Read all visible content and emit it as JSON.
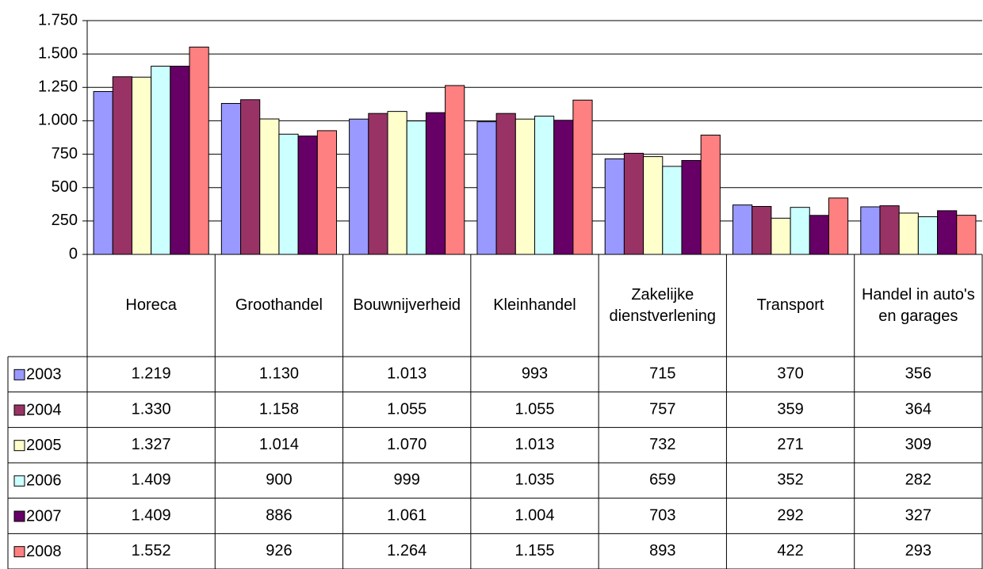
{
  "chart_data": {
    "type": "bar",
    "categories": [
      "Horeca",
      "Groothandel",
      "Bouwnijverheid",
      "Kleinhandel",
      "Zakelijke dienstverlening",
      "Transport",
      "Handel in auto's en garages"
    ],
    "series": [
      {
        "name": "2003",
        "color": "#9999ff",
        "values": [
          1219,
          1130,
          1013,
          993,
          715,
          370,
          356
        ],
        "value_labels": [
          "1.219",
          "1.130",
          "1.013",
          "993",
          "715",
          "370",
          "356"
        ]
      },
      {
        "name": "2004",
        "color": "#993366",
        "values": [
          1330,
          1158,
          1055,
          1055,
          757,
          359,
          364
        ],
        "value_labels": [
          "1.330",
          "1.158",
          "1.055",
          "1.055",
          "757",
          "359",
          "364"
        ]
      },
      {
        "name": "2005",
        "color": "#ffffcc",
        "values": [
          1327,
          1014,
          1070,
          1013,
          732,
          271,
          309
        ],
        "value_labels": [
          "1.327",
          "1.014",
          "1.070",
          "1.013",
          "732",
          "271",
          "309"
        ]
      },
      {
        "name": "2006",
        "color": "#ccffff",
        "values": [
          1409,
          900,
          999,
          1035,
          659,
          352,
          282
        ],
        "value_labels": [
          "1.409",
          "900",
          "999",
          "1.035",
          "659",
          "352",
          "282"
        ]
      },
      {
        "name": "2007",
        "color": "#660066",
        "values": [
          1409,
          886,
          1061,
          1004,
          703,
          292,
          327
        ],
        "value_labels": [
          "1.409",
          "886",
          "1.061",
          "1.004",
          "703",
          "292",
          "327"
        ]
      },
      {
        "name": "2008",
        "color": "#ff8080",
        "values": [
          1552,
          926,
          1264,
          1155,
          893,
          422,
          293
        ],
        "value_labels": [
          "1.552",
          "926",
          "1.264",
          "1.155",
          "893",
          "422",
          "293"
        ]
      }
    ],
    "ylim": [
      0,
      1750
    ],
    "yticks": [
      0,
      250,
      500,
      750,
      {
        "value": 1000,
        "label": "1.000"
      },
      {
        "value": 1250,
        "label": "1.250"
      },
      {
        "value": 1500,
        "label": "1.500"
      },
      {
        "value": 1750,
        "label": "1.750"
      }
    ],
    "grid": true
  }
}
